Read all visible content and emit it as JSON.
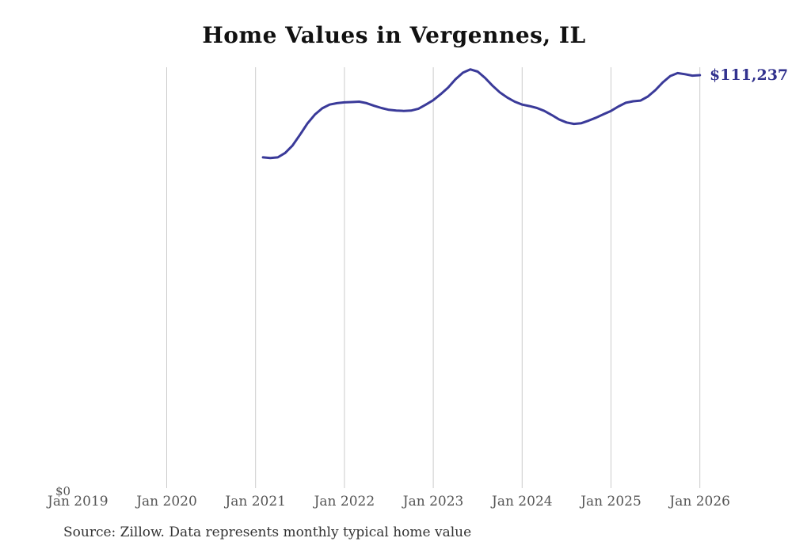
{
  "title": "Home Values in Vergennes, IL",
  "end_value_label": "$111,237",
  "source_note": "Source: Zillow. Data represents monthly typical home value",
  "y_axis": {
    "zero_label": "$0",
    "min": 0
  },
  "x_axis": {
    "tick_labels": [
      "Jan 2019",
      "Jan 2020",
      "Jan 2021",
      "Jan 2022",
      "Jan 2023",
      "Jan 2024",
      "Jan 2025",
      "Jan 2026"
    ],
    "gridline_years": [
      1,
      2,
      3,
      4,
      5,
      6,
      7
    ]
  },
  "colors": {
    "line": "#3a3a99",
    "end_label": "#32328e",
    "grid": "#cccccc",
    "axis_text": "#555555",
    "title_text": "#111111",
    "source_text": "#333333",
    "background": "#ffffff"
  },
  "chart_data": {
    "type": "line",
    "title": "Home Values in Vergennes, IL",
    "xlabel": "",
    "ylabel": "",
    "ylim": [
      0,
      115000
    ],
    "grid": "vertical-only",
    "legend": "none",
    "x_tick_labels": [
      "Jan 2019",
      "Jan 2020",
      "Jan 2021",
      "Jan 2022",
      "Jan 2023",
      "Jan 2024",
      "Jan 2025",
      "Jan 2026"
    ],
    "y_tick_labels": [
      "$0"
    ],
    "end_annotation": "$111,237",
    "series": [
      {
        "name": "Monthly typical home value",
        "frequency": "monthly",
        "start_month": "Feb 2021",
        "end_month": "Jan 2026",
        "values": [
          89100,
          88900,
          89100,
          90300,
          92300,
          95200,
          98200,
          100600,
          102300,
          103300,
          103700,
          103900,
          104000,
          104100,
          103700,
          103000,
          102400,
          101900,
          101700,
          101600,
          101700,
          102200,
          103300,
          104500,
          106100,
          107900,
          110100,
          111900,
          112800,
          112200,
          110500,
          108400,
          106600,
          105200,
          104100,
          103300,
          102900,
          102400,
          101600,
          100500,
          99300,
          98500,
          98100,
          98300,
          99000,
          99800,
          100700,
          101600,
          102800,
          103800,
          104200,
          104400,
          105500,
          107200,
          109300,
          111000,
          111800,
          111500,
          111100,
          111237
        ]
      }
    ]
  }
}
